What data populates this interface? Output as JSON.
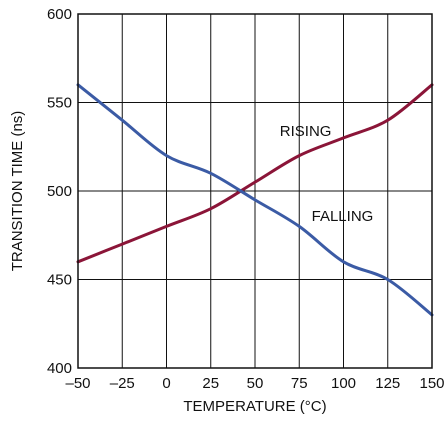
{
  "chart_data": {
    "type": "line",
    "title": "",
    "xlabel": "TEMPERATURE (°C)",
    "ylabel": "TRANSITION TIME (ns)",
    "xlim": [
      -50,
      150
    ],
    "ylim": [
      400,
      600
    ],
    "x_ticks": [
      -50,
      -25,
      0,
      25,
      50,
      75,
      100,
      125,
      150
    ],
    "x_tick_labels": [
      "–50",
      "–25",
      "0",
      "25",
      "50",
      "75",
      "100",
      "125",
      "150"
    ],
    "y_ticks": [
      400,
      450,
      500,
      550,
      600
    ],
    "y_tick_labels": [
      "400",
      "450",
      "500",
      "550",
      "600"
    ],
    "grid": true,
    "series": [
      {
        "name": "RISING",
        "color": "#8B1538",
        "x": [
          -50,
          -25,
          0,
          25,
          50,
          75,
          100,
          125,
          150
        ],
        "values": [
          460,
          470,
          480,
          490,
          505,
          520,
          530,
          540,
          560
        ]
      },
      {
        "name": "FALLING",
        "color": "#3B5BA5",
        "x": [
          -50,
          -25,
          0,
          25,
          50,
          75,
          100,
          125,
          150
        ],
        "values": [
          560,
          540,
          520,
          510,
          495,
          480,
          460,
          450,
          430
        ]
      }
    ]
  }
}
